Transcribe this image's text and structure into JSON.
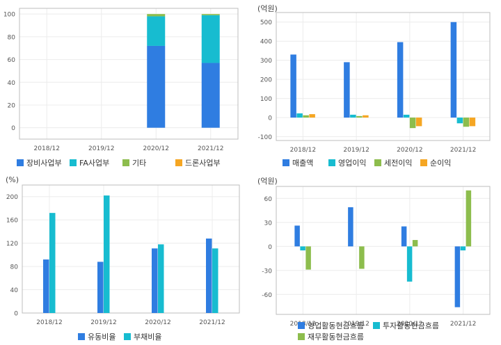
{
  "chart_data": [
    {
      "id": "segment-share",
      "type": "bar",
      "stacked": true,
      "unit_label": "",
      "categories": [
        "2018/12",
        "2019/12",
        "2020/12",
        "2021/12"
      ],
      "series": [
        {
          "name": "장비사업부",
          "color": "#2f7de1",
          "values": [
            null,
            null,
            72,
            57
          ]
        },
        {
          "name": "FA사업부",
          "color": "#17bcd0",
          "values": [
            null,
            null,
            26,
            42
          ]
        },
        {
          "name": "기타",
          "color": "#8dbd4d",
          "values": [
            null,
            null,
            2,
            1
          ]
        },
        {
          "name": "드론사업부",
          "color": "#f5a623",
          "values": [
            null,
            null,
            0,
            0
          ]
        }
      ],
      "ylim": [
        -10,
        105
      ],
      "yticks": [
        0,
        20,
        40,
        60,
        80,
        100
      ],
      "grid": true
    },
    {
      "id": "income",
      "type": "bar",
      "unit_label": "(억원)",
      "categories": [
        "2018/12",
        "2019/12",
        "2020/12",
        "2021/12"
      ],
      "series": [
        {
          "name": "매출액",
          "color": "#2f7de1",
          "values": [
            330,
            290,
            395,
            500
          ]
        },
        {
          "name": "영업이익",
          "color": "#17bcd0",
          "values": [
            22,
            15,
            15,
            -30
          ]
        },
        {
          "name": "세전이익",
          "color": "#8dbd4d",
          "values": [
            12,
            8,
            -55,
            -48
          ]
        },
        {
          "name": "순이익",
          "color": "#f5a623",
          "values": [
            18,
            12,
            -45,
            -45
          ]
        }
      ],
      "ylim": [
        -120,
        550
      ],
      "yticks": [
        -100,
        0,
        100,
        200,
        300,
        400,
        500
      ],
      "grid": true
    },
    {
      "id": "ratios",
      "type": "bar",
      "unit_label": "(%)",
      "categories": [
        "2018/12",
        "2019/12",
        "2020/12",
        "2021/12"
      ],
      "series": [
        {
          "name": "유동비율",
          "color": "#2f7de1",
          "values": [
            92,
            88,
            111,
            128
          ]
        },
        {
          "name": "부채비율",
          "color": "#17bcd0",
          "values": [
            172,
            202,
            118,
            111
          ]
        }
      ],
      "ylim": [
        0,
        220
      ],
      "yticks": [
        0,
        40,
        80,
        120,
        160,
        200
      ],
      "grid": true
    },
    {
      "id": "cashflow",
      "type": "bar",
      "unit_label": "(억원)",
      "categories": [
        "2018/12",
        "2019/12",
        "2020/12",
        "2021/12"
      ],
      "series": [
        {
          "name": "영업활동현금흐름",
          "color": "#2f7de1",
          "values": [
            26,
            49,
            25,
            -76
          ]
        },
        {
          "name": "투자활동현금흐름",
          "color": "#17bcd0",
          "values": [
            -5,
            0,
            -44,
            -5
          ]
        },
        {
          "name": "재무활동현금흐름",
          "color": "#8dbd4d",
          "values": [
            -29,
            -28,
            8,
            70
          ]
        }
      ],
      "ylim": [
        -85,
        75
      ],
      "yticks": [
        -60,
        -30,
        0,
        30,
        60
      ],
      "grid": true
    }
  ]
}
